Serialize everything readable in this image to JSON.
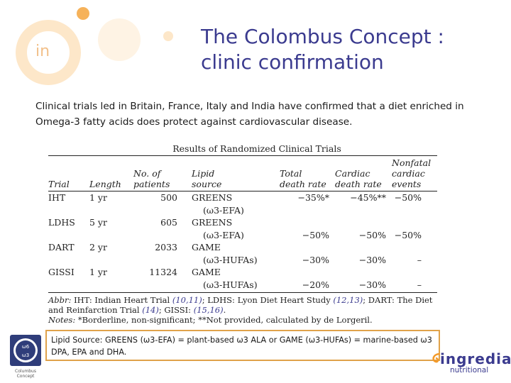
{
  "title": {
    "line1": "The Colombus Concept :",
    "line2": "clinic confirmation"
  },
  "intro": "Clinical trials led in Britain, France, Italy and India have confirmed that a diet enriched in Omega-3 fatty acids does protect against cardiovascular disease.",
  "table": {
    "title": "Results of Randomized Clinical Trials",
    "headers": {
      "trial": [
        "Trial"
      ],
      "length": [
        "Length"
      ],
      "patients": [
        "No. of",
        "patients"
      ],
      "source": [
        "Lipid",
        "source"
      ],
      "total_death": [
        "Total",
        "death rate"
      ],
      "cardiac_death": [
        "Cardiac",
        "death rate"
      ],
      "nonfatal": [
        "Nonfatal",
        "cardiac events"
      ]
    },
    "rows": [
      {
        "trial": "IHT",
        "length": "1 yr",
        "patients": "500",
        "source1": "GREENS",
        "source2": "(ω3-EFA)",
        "total1": "−35%*",
        "total2": "",
        "cardiac1": "−45%**",
        "cardiac2": "",
        "nonfatal1": "−50%",
        "nonfatal2": ""
      },
      {
        "trial": "LDHS",
        "length": "5 yr",
        "patients": "605",
        "source1": "GREENS",
        "source2": "(ω3-EFA)",
        "total1": "",
        "total2": "−50%",
        "cardiac1": "",
        "cardiac2": "−50%",
        "nonfatal1": "",
        "nonfatal2": "−50%"
      },
      {
        "trial": "DART",
        "length": "2 yr",
        "patients": "2033",
        "source1": "GAME",
        "source2": "(ω3-HUFAs)",
        "total1": "",
        "total2": "−30%",
        "cardiac1": "",
        "cardiac2": "−30%",
        "nonfatal1": "",
        "nonfatal2": "–"
      },
      {
        "trial": "GISSI",
        "length": "1 yr",
        "patients": "11324",
        "source1": "GAME",
        "source2": "(ω3-HUFAs)",
        "total1": "",
        "total2": "−20%",
        "cardiac1": "",
        "cardiac2": "−30%",
        "nonfatal1": "",
        "nonfatal2": "–"
      }
    ],
    "abbr_label": "Abbr:",
    "abbr_parts": [
      "IHT: Indian Heart Trial ",
      "(10,11)",
      "; LDHS: Lyon Diet Heart Study ",
      "(12,13)",
      "; DART: The Diet and Reinfarction Trial ",
      "(14)",
      "; GISSI: ",
      "(15,16)",
      "."
    ],
    "notes_label": "Notes:",
    "notes_text": " *Borderline, non-significant; **Not provided, calculated by de Lorgeril."
  },
  "source_note": "Lipid Source:     GREENS (ω3-EFA) = plant-based ω3 ALA or GAME (ω3-HUFAs) =  marine-based ω3 DPA, EPA and DHA.",
  "decor": {
    "in_mark": "in"
  },
  "badge": {
    "top": "ω6",
    "mid": "ω3",
    "caption1": "Columbus",
    "caption2": "Concept"
  },
  "logo": {
    "top": "ingredia",
    "bottom": "nutritional"
  },
  "colors": {
    "title": "#3b3b8f",
    "accent_orange": "#f39a2a",
    "box_border": "#e0a24a"
  }
}
